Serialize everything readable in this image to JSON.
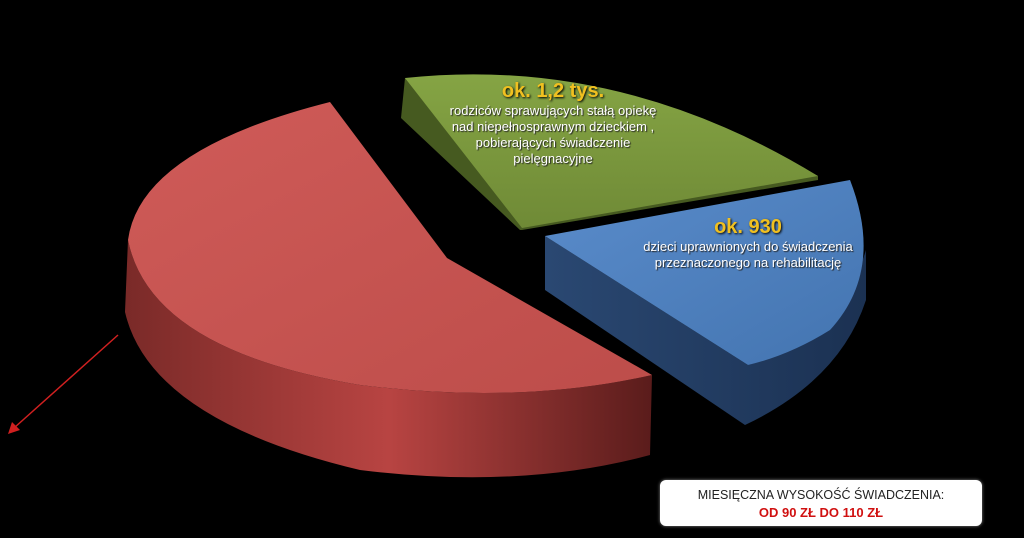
{
  "chart_data": {
    "type": "pie",
    "slices": [
      {
        "value_label": "",
        "description": "",
        "share": 0.5,
        "color": "#c0504d"
      },
      {
        "value_label": "ok. 1,2 tys.",
        "description": "rodziców sprawujących stałą opiekę nad niepełnosprawnym dzieckiem , pobierających świadczenie pielęgnacyjne",
        "share": 0.25,
        "color": "#77933c"
      },
      {
        "value_label": "ok. 930",
        "description": "dzieci uprawnionych  do świadczenia przeznaczonego na rehabilitację",
        "share": 0.25,
        "color": "#4f81bd"
      }
    ]
  },
  "info_box": {
    "line1": "MIESIĘCZNA WYSOKOŚĆ ŚWIADCZENIA:",
    "line2": "OD 90 ZŁ DO 110 ZŁ"
  },
  "colors": {
    "background": "#000000",
    "label_value": "#f0c020",
    "arrow": "#d02020",
    "info_highlight": "#d01010"
  }
}
